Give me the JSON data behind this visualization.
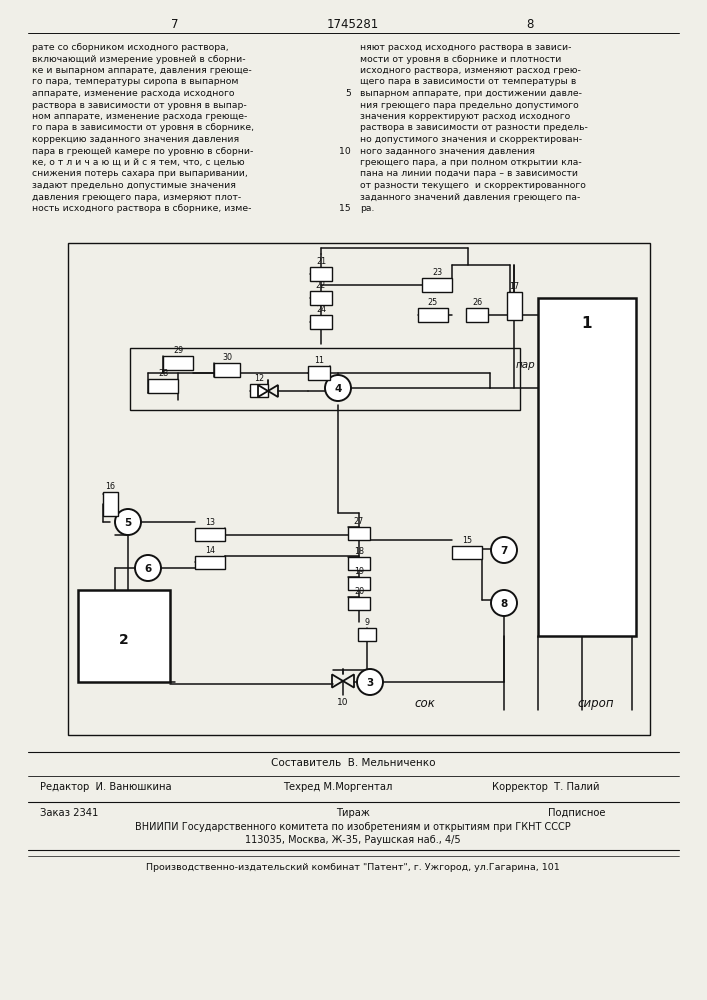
{
  "page_number_left": "7",
  "patent_number": "1745281",
  "page_number_right": "8",
  "text_left": [
    "рате со сборником исходного раствора,",
    "включающий измерение уровней в сборни-",
    "ке и выпарном аппарате, давления греюще-",
    "го пара, температуры сиропа в выпарном",
    "аппарате, изменение расхода исходного",
    "раствора в зависимости от уровня в выпар-",
    "ном аппарате, изменение расхода греюще-",
    "го пара в зависимости от уровня в сборнике,",
    "коррекцию заданного значения давления",
    "пара в греющей камере по уровню в сборни-",
    "ке, о т л и ч а ю щ и й с я тем, что, с целью",
    "снижения потерь сахара при выпаривании,",
    "задают предельно допустимые значения",
    "давления греющего пара, измеряют плот-",
    "ность исходного раствора в сборнике, изме-"
  ],
  "text_right": [
    "няют расход исходного раствора в зависи-",
    "мости от уровня в сборнике и плотности",
    "исходного раствора, изменяют расход грею-",
    "щего пара в зависимости от температуры в",
    "выпарном аппарате, при достижении давле-",
    "ния греющего пара предельно допустимого",
    "значения корректируют расход исходного",
    "раствора в зависимости от разности предель-",
    "но допустимого значения и скорректирован-",
    "ного заданного значения давления",
    "греющего пара, а при полном открытии кла-",
    "пана на линии подачи пара – в зависимости",
    "от разности текущего  и скорректированного",
    "заданного значений давления греющего па-",
    "ра."
  ],
  "bg_color": "#f0efe8",
  "text_color": "#111111",
  "editor_label": "Редактор  И. Ванюшкина",
  "composer_label": "Составитель  В. Мельниченко",
  "techred_label": "Техред М.Моргентал",
  "corrector_label": "Корректор  Т. Палий",
  "order_label": "Заказ 2341",
  "tirazh_label": "Тираж",
  "podpisnoe_label": "Подписное",
  "vniiipi_line1": "ВНИИПИ Государственного комитета по изобретениям и открытиям при ГКНТ СССР",
  "vniiipi_line2": "113035, Москва, Ж-35, Раушская наб., 4/5",
  "publisher_line": "Производственно-издательский комбинат \"Патент\", г. Ужгород, ул.Гагарина, 101"
}
